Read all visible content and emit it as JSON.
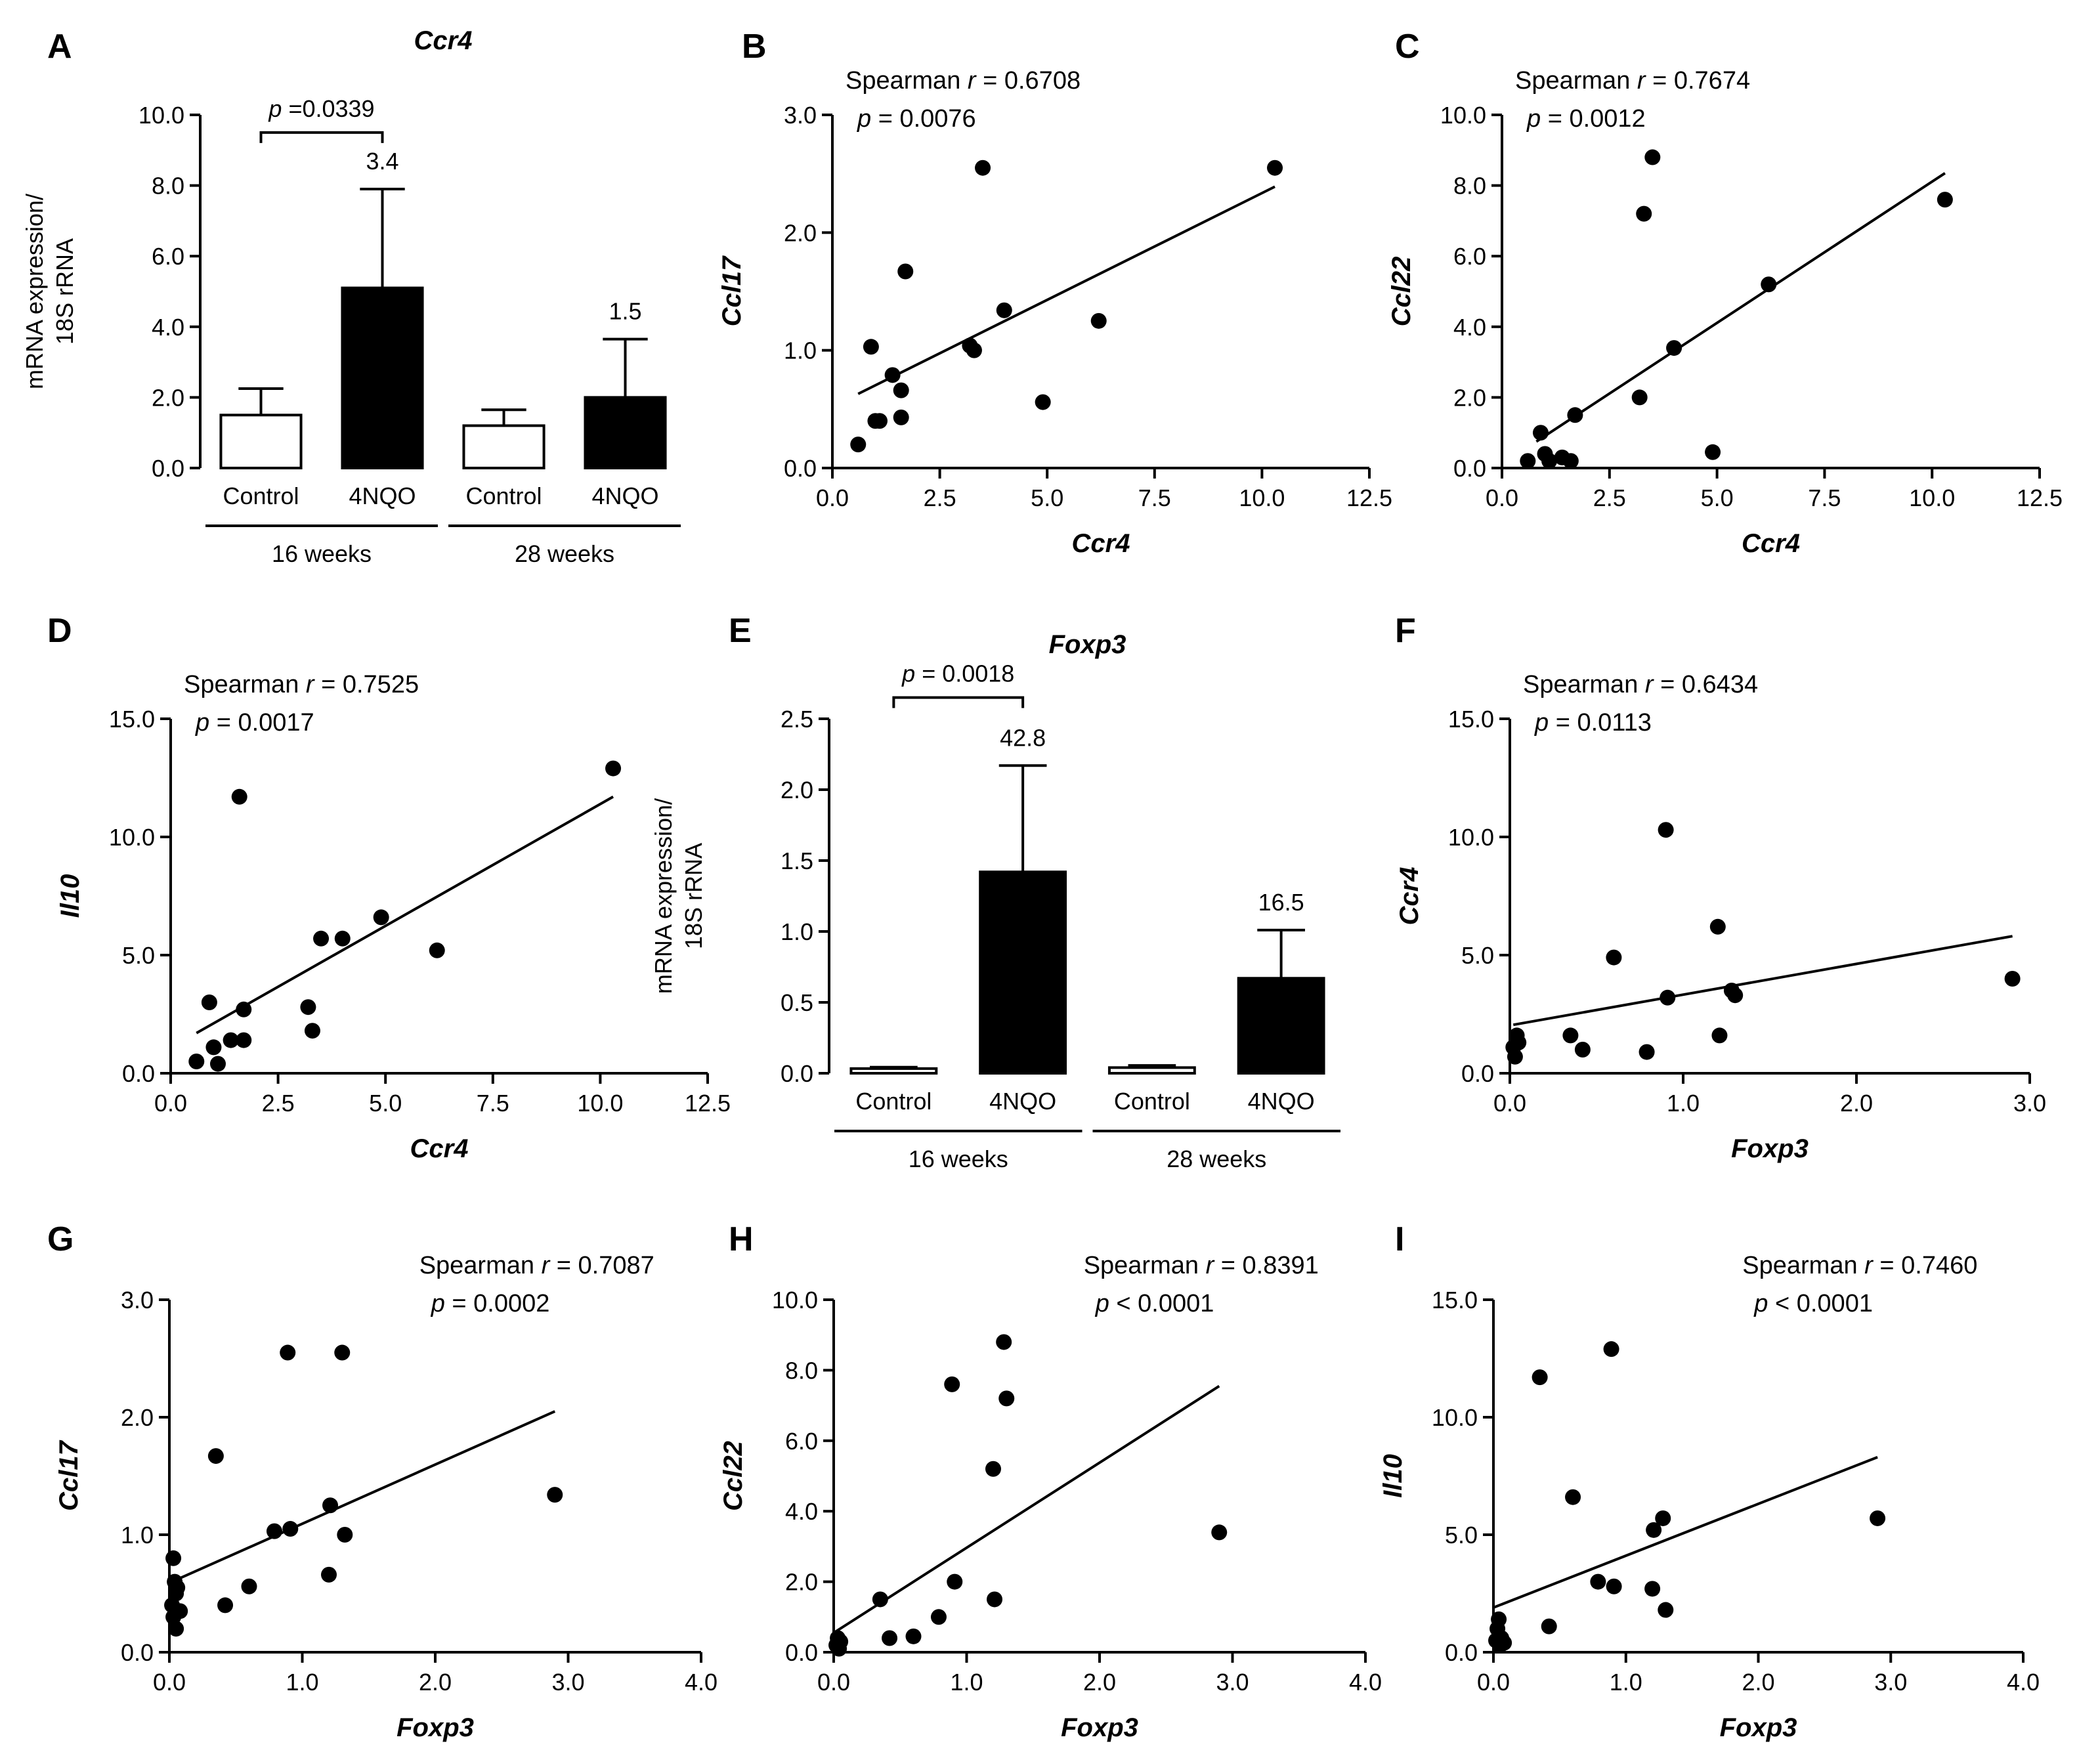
{
  "figure": {
    "aria_label": "Nine-panel figure: Ccr4 and Foxp3 mRNA expression bar charts and Spearman correlation scatter plots"
  },
  "chart_data": [
    {
      "panel": "A",
      "type": "bar",
      "title": "Ccr4",
      "ylabel_lines": [
        "mRNA expression/",
        "18S rRNA"
      ],
      "categories": [
        "Control",
        "4NQO",
        "Control",
        "4NQO"
      ],
      "groups": [
        {
          "label": "16 weeks",
          "start": 0,
          "end": 1
        },
        {
          "label": "28 weeks",
          "start": 2,
          "end": 3
        }
      ],
      "values": [
        1.5,
        5.1,
        1.2,
        2.0
      ],
      "errors": [
        0.75,
        2.8,
        0.45,
        1.65
      ],
      "fills": [
        "white",
        "black",
        "white",
        "black"
      ],
      "fold_labels": [
        null,
        "3.4",
        null,
        "1.5"
      ],
      "bracket": {
        "from": 0,
        "to": 1,
        "y": 9.5,
        "label": "p=0.0339"
      },
      "ylim": [
        0,
        10
      ],
      "yticks": [
        0,
        2,
        4,
        6,
        8,
        10
      ],
      "ytick_labels": [
        "0.0",
        "2.0",
        "4.0",
        "6.0",
        "8.0",
        "10.0"
      ]
    },
    {
      "panel": "B",
      "type": "scatter",
      "xlabel": "Ccr4",
      "ylabel": "Ccl17",
      "stat_label": "Spearman",
      "r_label": "r = 0.6708",
      "p_label": "p = 0.0076",
      "stats_anchor": "top-left",
      "xlim": [
        0,
        12.5
      ],
      "xticks": [
        0,
        2.5,
        5,
        7.5,
        10,
        12.5
      ],
      "xtick_labels": [
        "0.0",
        "2.5",
        "5.0",
        "7.5",
        "10.0",
        "12.5"
      ],
      "ylim": [
        0,
        3
      ],
      "yticks": [
        0,
        1,
        2,
        3
      ],
      "ytick_labels": [
        "0.0",
        "1.0",
        "2.0",
        "3.0"
      ],
      "x": [
        0.6,
        0.9,
        1.0,
        1.1,
        1.4,
        1.6,
        1.6,
        1.7,
        3.2,
        3.3,
        3.5,
        4.0,
        4.9,
        6.2,
        10.3
      ],
      "y": [
        0.2,
        1.03,
        0.4,
        0.4,
        0.79,
        0.43,
        0.66,
        1.67,
        1.04,
        1.0,
        2.55,
        1.34,
        0.56,
        1.25,
        2.55
      ],
      "fit": {
        "x": [
          0.6,
          10.3
        ],
        "y": [
          0.63,
          2.39
        ]
      }
    },
    {
      "panel": "C",
      "type": "scatter",
      "xlabel": "Ccr4",
      "ylabel": "Ccl22",
      "stat_label": "Spearman",
      "r_label": "r = 0.7674",
      "p_label": "p = 0.0012",
      "stats_anchor": "top-left",
      "xlim": [
        0,
        12.5
      ],
      "xticks": [
        0,
        2.5,
        5,
        7.5,
        10,
        12.5
      ],
      "xtick_labels": [
        "0.0",
        "2.5",
        "5.0",
        "7.5",
        "10.0",
        "12.5"
      ],
      "ylim": [
        0,
        10
      ],
      "yticks": [
        0,
        2,
        4,
        6,
        8,
        10
      ],
      "ytick_labels": [
        "0.0",
        "2.0",
        "4.0",
        "6.0",
        "8.0",
        "10.0"
      ],
      "x": [
        0.6,
        0.9,
        1.0,
        1.1,
        1.4,
        1.6,
        1.7,
        3.2,
        3.3,
        3.5,
        4.0,
        4.9,
        6.2,
        10.3
      ],
      "y": [
        0.2,
        1.0,
        0.4,
        0.2,
        0.3,
        0.2,
        1.5,
        2.0,
        7.2,
        8.8,
        3.4,
        0.45,
        5.2,
        7.6
      ],
      "fit": {
        "x": [
          0.8,
          10.3
        ],
        "y": [
          0.75,
          8.35
        ]
      }
    },
    {
      "panel": "D",
      "type": "scatter",
      "xlabel": "Ccr4",
      "ylabel": "Il10",
      "stat_label": "Spearman",
      "r_label": "r = 0.7525",
      "p_label": "p = 0.0017",
      "stats_anchor": "top-left",
      "xlim": [
        0,
        12.5
      ],
      "xticks": [
        0,
        2.5,
        5,
        7.5,
        10,
        12.5
      ],
      "xtick_labels": [
        "0.0",
        "2.5",
        "5.0",
        "7.5",
        "10.0",
        "12.5"
      ],
      "ylim": [
        0,
        15
      ],
      "yticks": [
        0,
        5,
        10,
        15
      ],
      "ytick_labels": [
        "0.0",
        "5.0",
        "10.0",
        "15.0"
      ],
      "x": [
        0.6,
        0.9,
        1.0,
        1.1,
        1.4,
        1.6,
        1.7,
        1.7,
        3.2,
        3.3,
        3.5,
        4.0,
        4.9,
        6.2,
        10.3
      ],
      "y": [
        0.5,
        3.0,
        1.1,
        0.4,
        1.4,
        11.7,
        2.7,
        1.4,
        2.8,
        1.8,
        5.7,
        5.7,
        6.6,
        5.2,
        12.9
      ],
      "fit": {
        "x": [
          0.6,
          10.3
        ],
        "y": [
          1.7,
          11.7
        ]
      }
    },
    {
      "panel": "E",
      "type": "bar",
      "title": "Foxp3",
      "ylabel_lines": [
        "mRNA expression/",
        "18S rRNA"
      ],
      "categories": [
        "Control",
        "4NQO",
        "Control",
        "4NQO"
      ],
      "groups": [
        {
          "label": "16 weeks",
          "start": 0,
          "end": 1
        },
        {
          "label": "28 weeks",
          "start": 2,
          "end": 3
        }
      ],
      "values": [
        0.033,
        1.42,
        0.04,
        0.67
      ],
      "errors": [
        0.01,
        0.75,
        0.015,
        0.34
      ],
      "fills": [
        "white",
        "black",
        "white",
        "black"
      ],
      "fold_labels": [
        null,
        "42.8",
        null,
        "16.5"
      ],
      "bracket": {
        "from": 0,
        "to": 1,
        "y": 2.65,
        "label": "p = 0.0018"
      },
      "ylim": [
        0,
        2.5
      ],
      "yticks": [
        0,
        0.5,
        1,
        1.5,
        2,
        2.5
      ],
      "ytick_labels": [
        "0.0",
        "0.5",
        "1.0",
        "1.5",
        "2.0",
        "2.5"
      ]
    },
    {
      "panel": "F",
      "type": "scatter",
      "xlabel": "Foxp3",
      "ylabel": "Ccr4",
      "stat_label": "Spearman",
      "r_label": "r = 0.6434",
      "p_label": "p = 0.0113",
      "stats_anchor": "top-left",
      "xlim": [
        0,
        3
      ],
      "xticks": [
        0,
        1,
        2,
        3
      ],
      "xtick_labels": [
        "0.0",
        "1.0",
        "2.0",
        "3.0"
      ],
      "ylim": [
        0,
        15
      ],
      "yticks": [
        0,
        5,
        10,
        15
      ],
      "ytick_labels": [
        "0.0",
        "5.0",
        "10.0",
        "15.0"
      ],
      "x": [
        0.02,
        0.03,
        0.04,
        0.05,
        0.35,
        0.42,
        0.6,
        0.79,
        0.9,
        0.91,
        1.2,
        1.21,
        1.28,
        1.3,
        2.9
      ],
      "y": [
        1.1,
        0.7,
        1.6,
        1.3,
        1.6,
        1.0,
        4.9,
        0.9,
        10.3,
        3.2,
        6.2,
        1.6,
        3.5,
        3.3,
        4.0
      ],
      "fit": {
        "x": [
          0.02,
          2.9
        ],
        "y": [
          2.05,
          5.8
        ]
      }
    },
    {
      "panel": "G",
      "type": "scatter",
      "xlabel": "Foxp3",
      "ylabel": "Ccl17",
      "stat_label": "Spearman",
      "r_label": "r = 0.7087",
      "p_label": "p = 0.0002",
      "stats_anchor": "top-right",
      "xlim": [
        0,
        4
      ],
      "xticks": [
        0,
        1,
        2,
        3,
        4
      ],
      "xtick_labels": [
        "0.0",
        "1.0",
        "2.0",
        "3.0",
        "4.0"
      ],
      "ylim": [
        0,
        3
      ],
      "yticks": [
        0,
        1,
        2,
        3
      ],
      "ytick_labels": [
        "0.0",
        "1.0",
        "2.0",
        "3.0"
      ],
      "x": [
        0.02,
        0.03,
        0.03,
        0.04,
        0.05,
        0.05,
        0.06,
        0.08,
        0.35,
        0.42,
        0.6,
        0.79,
        0.89,
        0.91,
        1.2,
        1.21,
        1.3,
        1.32,
        2.9
      ],
      "y": [
        0.4,
        0.8,
        0.3,
        0.6,
        0.5,
        0.2,
        0.55,
        0.35,
        1.67,
        0.4,
        0.56,
        1.03,
        2.55,
        1.05,
        0.66,
        1.25,
        2.55,
        1.0,
        1.34
      ],
      "fit": {
        "x": [
          0.02,
          2.9
        ],
        "y": [
          0.6,
          2.05
        ]
      }
    },
    {
      "panel": "H",
      "type": "scatter",
      "xlabel": "Foxp3",
      "ylabel": "Ccl22",
      "stat_label": "Spearman",
      "r_label": "r = 0.8391",
      "p_label": "p < 0.0001",
      "stats_anchor": "top-right",
      "xlim": [
        0,
        4
      ],
      "xticks": [
        0,
        1,
        2,
        3,
        4
      ],
      "xtick_labels": [
        "0.0",
        "1.0",
        "2.0",
        "3.0",
        "4.0"
      ],
      "ylim": [
        0,
        10
      ],
      "yticks": [
        0,
        2,
        4,
        6,
        8,
        10
      ],
      "ytick_labels": [
        "0.0",
        "2.0",
        "4.0",
        "6.0",
        "8.0",
        "10.0"
      ],
      "x": [
        0.02,
        0.03,
        0.04,
        0.05,
        0.35,
        0.42,
        0.6,
        0.79,
        0.89,
        0.91,
        1.2,
        1.21,
        1.28,
        1.3,
        2.9
      ],
      "y": [
        0.2,
        0.4,
        0.1,
        0.3,
        1.5,
        0.4,
        0.45,
        1.0,
        7.6,
        2.0,
        5.2,
        1.5,
        8.8,
        7.2,
        3.4
      ],
      "fit": {
        "x": [
          0.0,
          2.9
        ],
        "y": [
          0.55,
          7.55
        ]
      }
    },
    {
      "panel": "I",
      "type": "scatter",
      "xlabel": "Foxp3",
      "ylabel": "Il10",
      "stat_label": "Spearman",
      "r_label": "r = 0.7460",
      "p_label": "p < 0.0001",
      "stats_anchor": "top-right",
      "xlim": [
        0,
        4
      ],
      "xticks": [
        0,
        1,
        2,
        3,
        4
      ],
      "xtick_labels": [
        "0.0",
        "1.0",
        "2.0",
        "3.0",
        "4.0"
      ],
      "ylim": [
        0,
        15
      ],
      "yticks": [
        0,
        5,
        10,
        15
      ],
      "ytick_labels": [
        "0.0",
        "5.0",
        "10.0",
        "15.0"
      ],
      "x": [
        0.02,
        0.03,
        0.04,
        0.05,
        0.06,
        0.08,
        0.35,
        0.42,
        0.6,
        0.79,
        0.89,
        0.91,
        1.2,
        1.21,
        1.28,
        1.3,
        2.9
      ],
      "y": [
        0.5,
        1.0,
        1.4,
        0.3,
        0.6,
        0.4,
        11.7,
        1.1,
        6.6,
        3.0,
        12.9,
        2.8,
        2.7,
        5.2,
        5.7,
        1.8,
        5.7
      ],
      "fit": {
        "x": [
          0.0,
          2.9
        ],
        "y": [
          1.9,
          8.3
        ]
      }
    }
  ]
}
